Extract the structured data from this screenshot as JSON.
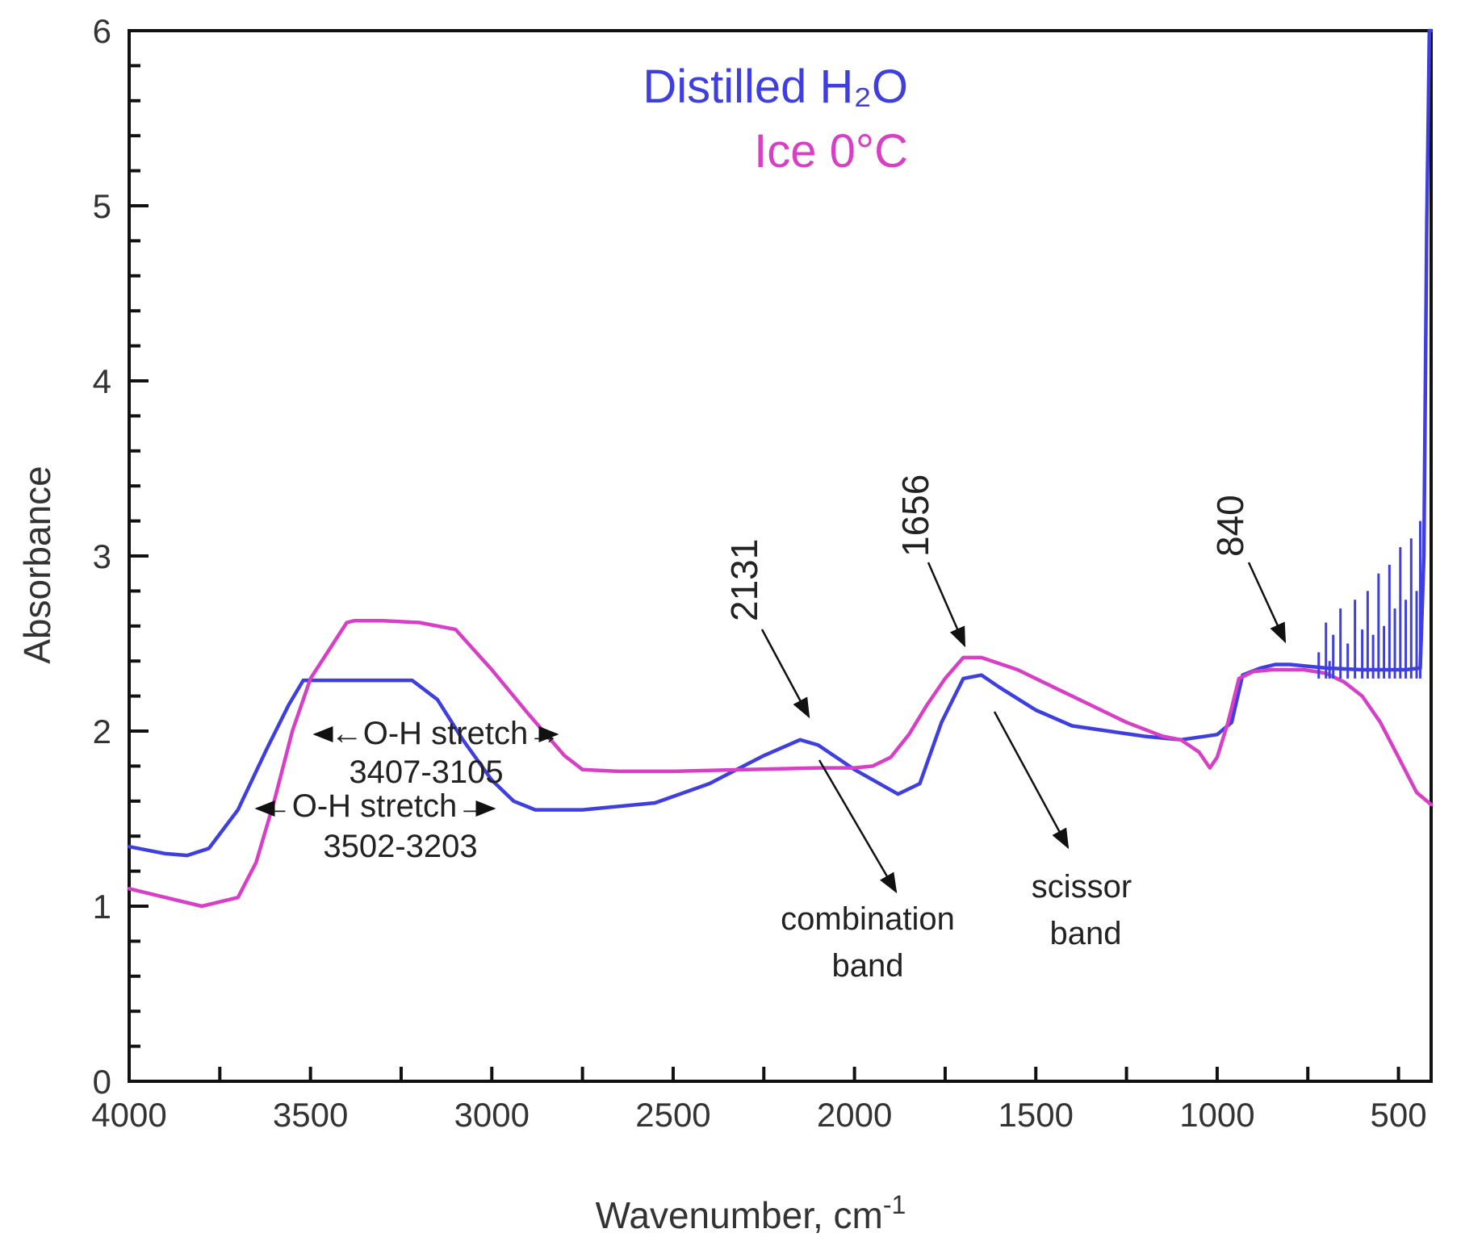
{
  "chart_data": {
    "type": "line",
    "title": "",
    "xlabel": "Wavenumber, cm",
    "xlabel_superscript": "-1",
    "ylabel": "Absorbance",
    "xlim": [
      4000,
      410
    ],
    "ylim": [
      0,
      6
    ],
    "x_ticks": [
      4000,
      3500,
      3000,
      2500,
      2000,
      1500,
      1000,
      500
    ],
    "x_tick_labels": [
      "4000",
      "3500",
      "3000",
      "2500",
      "2000",
      "1500",
      "1000",
      "500"
    ],
    "y_ticks": [
      0,
      1,
      2,
      3,
      4,
      5,
      6
    ],
    "y_tick_labels": [
      "0",
      "1",
      "2",
      "3",
      "4",
      "5",
      "6"
    ],
    "grid": false,
    "legend": {
      "position": "top-center",
      "entries": [
        {
          "label": "Distilled H₂O",
          "color": "#3f3fdf"
        },
        {
          "label": "Ice 0°C",
          "color": "#d63fc6"
        }
      ]
    },
    "series": [
      {
        "name": "Distilled H₂O",
        "color": "#3f3fdf",
        "x": [
          4000,
          3900,
          3840,
          3780,
          3700,
          3620,
          3560,
          3520,
          3450,
          3300,
          3220,
          3150,
          3080,
          3000,
          2940,
          2880,
          2750,
          2550,
          2400,
          2250,
          2150,
          2100,
          2000,
          1880,
          1820,
          1760,
          1700,
          1650,
          1600,
          1500,
          1400,
          1300,
          1200,
          1100,
          1000,
          960,
          930,
          880,
          840,
          800,
          700,
          600,
          520,
          480,
          440,
          430,
          422,
          418,
          415,
          412,
          410
        ],
        "y": [
          1.34,
          1.3,
          1.29,
          1.33,
          1.55,
          1.9,
          2.15,
          2.29,
          2.29,
          2.29,
          2.29,
          2.18,
          1.95,
          1.72,
          1.6,
          1.55,
          1.55,
          1.59,
          1.7,
          1.86,
          1.95,
          1.92,
          1.78,
          1.64,
          1.7,
          2.05,
          2.3,
          2.32,
          2.25,
          2.12,
          2.03,
          2.0,
          1.97,
          1.95,
          1.98,
          2.05,
          2.32,
          2.36,
          2.38,
          2.38,
          2.36,
          2.35,
          2.35,
          2.35,
          2.36,
          3.0,
          4.9,
          5.5,
          6.0,
          6.0,
          6.0
        ]
      },
      {
        "name": "Ice 0°C",
        "color": "#d63fc6",
        "x": [
          4000,
          3900,
          3800,
          3700,
          3650,
          3600,
          3550,
          3500,
          3400,
          3380,
          3300,
          3200,
          3100,
          3000,
          2900,
          2800,
          2750,
          2650,
          2500,
          2300,
          2100,
          2000,
          1950,
          1900,
          1850,
          1800,
          1750,
          1700,
          1650,
          1550,
          1450,
          1350,
          1250,
          1150,
          1100,
          1050,
          1020,
          1000,
          970,
          940,
          900,
          850,
          800,
          760,
          700,
          650,
          600,
          550,
          500,
          450,
          410
        ],
        "y": [
          1.1,
          1.05,
          1.0,
          1.05,
          1.25,
          1.6,
          2.0,
          2.3,
          2.62,
          2.63,
          2.63,
          2.62,
          2.58,
          2.35,
          2.1,
          1.86,
          1.78,
          1.77,
          1.77,
          1.78,
          1.79,
          1.79,
          1.8,
          1.85,
          1.98,
          2.15,
          2.3,
          2.42,
          2.42,
          2.35,
          2.25,
          2.15,
          2.05,
          1.97,
          1.95,
          1.88,
          1.79,
          1.85,
          2.05,
          2.3,
          2.34,
          2.35,
          2.35,
          2.35,
          2.33,
          2.28,
          2.2,
          2.05,
          1.85,
          1.65,
          1.58
        ]
      }
    ],
    "annotations": {
      "oh_ice_arrow": "←O-H stretch→",
      "oh_ice_range": "3407-3105",
      "oh_water_arrow": "←O-H stretch→",
      "oh_water_range": "3502-3203",
      "peak_2131": "2131",
      "peak_1656": "1656",
      "peak_840": "840",
      "combination_line1": "combination",
      "combination_line2": "band",
      "scissor_line1": "scissor",
      "scissor_line2": "band"
    }
  }
}
